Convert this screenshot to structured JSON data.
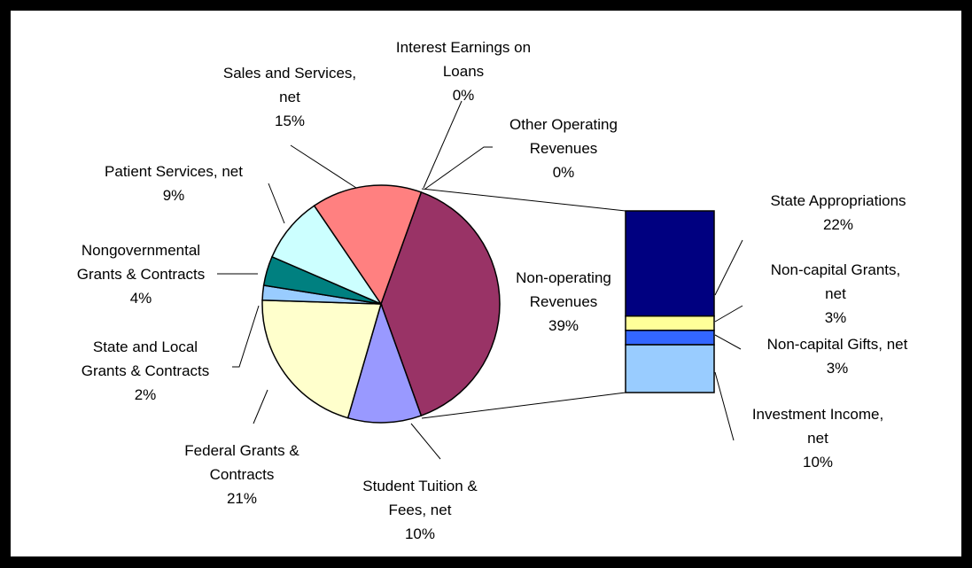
{
  "chart_data": {
    "type": "pie",
    "categories": [
      "Interest Earnings on\nLoans",
      "Other Operating\nRevenues",
      "Non-operating\nRevenues",
      "Student Tuition &\nFees, net",
      "Federal Grants &\nContracts",
      "State and Local\nGrants & Contracts",
      "Nongovernmental\nGrants & Contracts",
      "Patient Services, net",
      "Sales and Services,\nnet"
    ],
    "values": [
      0,
      0,
      39,
      10,
      21,
      2,
      4,
      9,
      15
    ],
    "value_labels": [
      "0%",
      "0%",
      "39%",
      "10%",
      "21%",
      "2%",
      "4%",
      "9%",
      "15%"
    ],
    "colors": [
      "#000080",
      "#ff00ff",
      "#993366",
      "#9999ff",
      "#ffffcc",
      "#99ccff",
      "#008080",
      "#ccffff",
      "#ff8080"
    ],
    "breakdown": {
      "categories": [
        "State Appropriations",
        "Non-capital Grants,\nnet",
        "Non-capital Gifts, net",
        "Investment Income,\nnet"
      ],
      "values": [
        22,
        3,
        3,
        10
      ],
      "value_labels": [
        "22%",
        "3%",
        "3%",
        "10%"
      ],
      "colors": [
        "#000080",
        "#ffff99",
        "#3366ff",
        "#99ccff"
      ]
    }
  }
}
